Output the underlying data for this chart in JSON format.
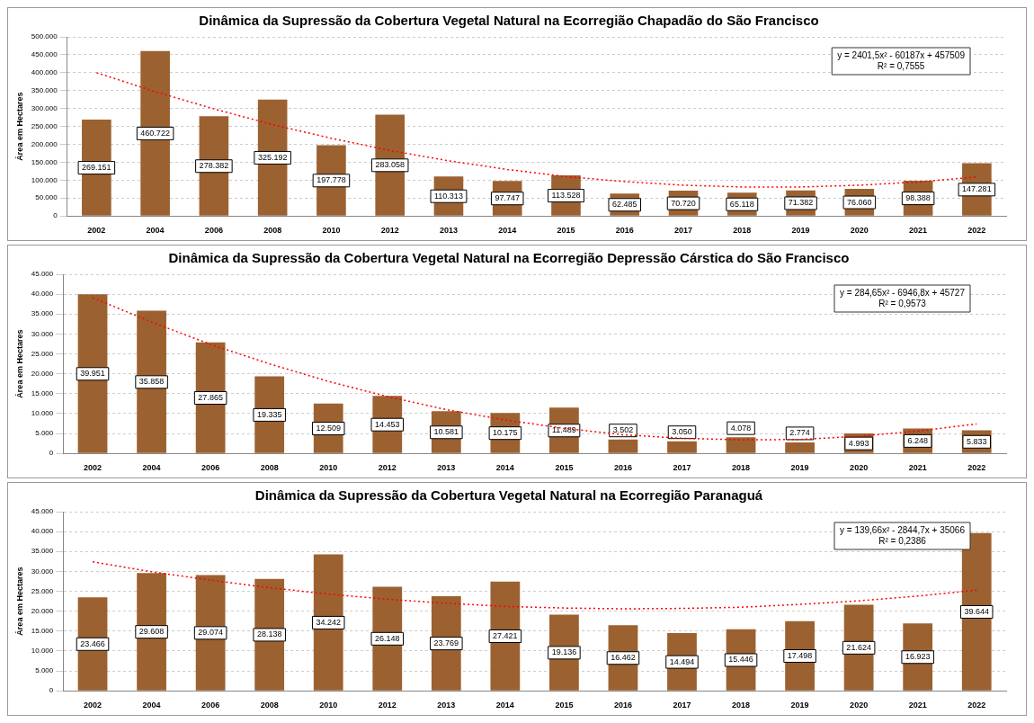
{
  "chart_data": [
    {
      "type": "bar",
      "title": "Dinâmica da Supressão da Cobertura Vegetal Natural na Ecorregião Chapadão do São Francisco",
      "ylabel": "Área em Hectares",
      "categories": [
        "2002",
        "2004",
        "2006",
        "2008",
        "2010",
        "2012",
        "2013",
        "2014",
        "2015",
        "2016",
        "2017",
        "2018",
        "2019",
        "2020",
        "2021",
        "2022"
      ],
      "ylim": [
        0,
        500000
      ],
      "yticks": [
        {
          "value": 0,
          "label": "0"
        },
        {
          "value": 50000,
          "label": "50.000"
        },
        {
          "value": 100000,
          "label": "100.000"
        },
        {
          "value": 150000,
          "label": "150.000"
        },
        {
          "value": 200000,
          "label": "200.000"
        },
        {
          "value": 250000,
          "label": "250.000"
        },
        {
          "value": 300000,
          "label": "300.000"
        },
        {
          "value": 350000,
          "label": "350.000"
        },
        {
          "value": 400000,
          "label": "400.000"
        },
        {
          "value": 450000,
          "label": "450.000"
        },
        {
          "value": 500000,
          "label": "500.000"
        }
      ],
      "grid": "y",
      "legend": false,
      "annotations": [
        "y = 2401,5x² - 60187x + 457509",
        "R² = 0,7555"
      ],
      "series": [
        {
          "color": "#9c6130",
          "values": [
            269151,
            460722,
            278382,
            325192,
            197778,
            283058,
            110313,
            97747,
            113528,
            62485,
            70720,
            65118,
            71382,
            76060,
            98388,
            147281
          ],
          "value_labels": [
            "269.151",
            "460.722",
            "278.382",
            "325.192",
            "197.778",
            "283.058",
            "110.313",
            "97.747",
            "113.528",
            "62.485",
            "70.720",
            "65.118",
            "71.382",
            "76.060",
            "98.388",
            "147.281"
          ]
        },
        {
          "type": "line",
          "color": "#ff0000",
          "line_style": "dotted",
          "marker": "none",
          "values": [
            400000,
            347000,
            299000,
            255000,
            217000,
            183000,
            154000,
            130000,
            110000,
            96000,
            86000,
            81000,
            81000,
            86000,
            95000,
            109000
          ]
        }
      ]
    },
    {
      "type": "bar",
      "title": "Dinâmica da Supressão da Cobertura Vegetal Natural na Ecorregião Depressão Cárstica do São Francisco",
      "ylabel": "Área em Hectares",
      "categories": [
        "2002",
        "2004",
        "2006",
        "2008",
        "2010",
        "2012",
        "2013",
        "2014",
        "2015",
        "2016",
        "2017",
        "2018",
        "2019",
        "2020",
        "2021",
        "2022"
      ],
      "ylim": [
        0,
        45000
      ],
      "yticks": [
        {
          "value": 0,
          "label": "0"
        },
        {
          "value": 5000,
          "label": "5.000"
        },
        {
          "value": 10000,
          "label": "10.000"
        },
        {
          "value": 15000,
          "label": "15.000"
        },
        {
          "value": 20000,
          "label": "20.000"
        },
        {
          "value": 25000,
          "label": "25.000"
        },
        {
          "value": 30000,
          "label": "30.000"
        },
        {
          "value": 35000,
          "label": "35.000"
        },
        {
          "value": 40000,
          "label": "40.000"
        },
        {
          "value": 45000,
          "label": "45.000"
        }
      ],
      "grid": "y",
      "legend": false,
      "annotations": [
        "y = 284,65x² - 6946,8x + 45727",
        "R² = 0,9573"
      ],
      "series": [
        {
          "color": "#9c6130",
          "values": [
            39951,
            35858,
            27865,
            19335,
            12509,
            14453,
            10581,
            10175,
            11489,
            3502,
            3050,
            4078,
            2774,
            4993,
            6248,
            5833
          ],
          "value_labels": [
            "39.951",
            "35.858",
            "27.865",
            "19.335",
            "12.509",
            "14.453",
            "10.581",
            "10.175",
            "11.489",
            "3.502",
            "3.050",
            "4.078",
            "2.774",
            "4.993",
            "6.248",
            "5.833"
          ]
        },
        {
          "type": "line",
          "color": "#ff0000",
          "line_style": "dotted",
          "marker": "none",
          "values": [
            39100,
            33000,
            27400,
            22500,
            18100,
            14300,
            11000,
            8400,
            6300,
            4700,
            3800,
            3400,
            3500,
            4300,
            5600,
            7400
          ]
        }
      ]
    },
    {
      "type": "bar",
      "title": "Dinâmica da Supressão da Cobertura Vegetal Natural na Ecorregião Paranaguá",
      "ylabel": "Área em Hectares",
      "categories": [
        "2002",
        "2004",
        "2006",
        "2008",
        "2010",
        "2012",
        "2013",
        "2014",
        "2015",
        "2016",
        "2017",
        "2018",
        "2019",
        "2020",
        "2021",
        "2022"
      ],
      "ylim": [
        0,
        45000
      ],
      "yticks": [
        {
          "value": 0,
          "label": "0"
        },
        {
          "value": 5000,
          "label": "5.000"
        },
        {
          "value": 10000,
          "label": "10.000"
        },
        {
          "value": 15000,
          "label": "15.000"
        },
        {
          "value": 20000,
          "label": "20.000"
        },
        {
          "value": 25000,
          "label": "25.000"
        },
        {
          "value": 30000,
          "label": "30.000"
        },
        {
          "value": 35000,
          "label": "35.000"
        },
        {
          "value": 40000,
          "label": "40.000"
        },
        {
          "value": 45000,
          "label": "45.000"
        }
      ],
      "grid": "y",
      "legend": false,
      "annotations": [
        "y = 139,66x² - 2844,7x + 35066",
        "R² = 0,2386"
      ],
      "series": [
        {
          "color": "#9c6130",
          "values": [
            23466,
            29608,
            29074,
            28138,
            34242,
            26148,
            23769,
            27421,
            19136,
            16462,
            14494,
            15446,
            17498,
            21624,
            16923,
            39644
          ],
          "value_labels": [
            "23.466",
            "29.608",
            "29.074",
            "28.138",
            "34.242",
            "26.148",
            "23.769",
            "27.421",
            "19.136",
            "16.462",
            "14.494",
            "15.446",
            "17.498",
            "21.624",
            "16.923",
            "39.644"
          ]
        },
        {
          "type": "line",
          "color": "#ff0000",
          "line_style": "dotted",
          "marker": "none",
          "values": [
            32400,
            29900,
            27800,
            25900,
            24300,
            23000,
            22000,
            21200,
            20800,
            20600,
            20700,
            21000,
            21700,
            22600,
            23800,
            25300
          ]
        }
      ]
    }
  ]
}
